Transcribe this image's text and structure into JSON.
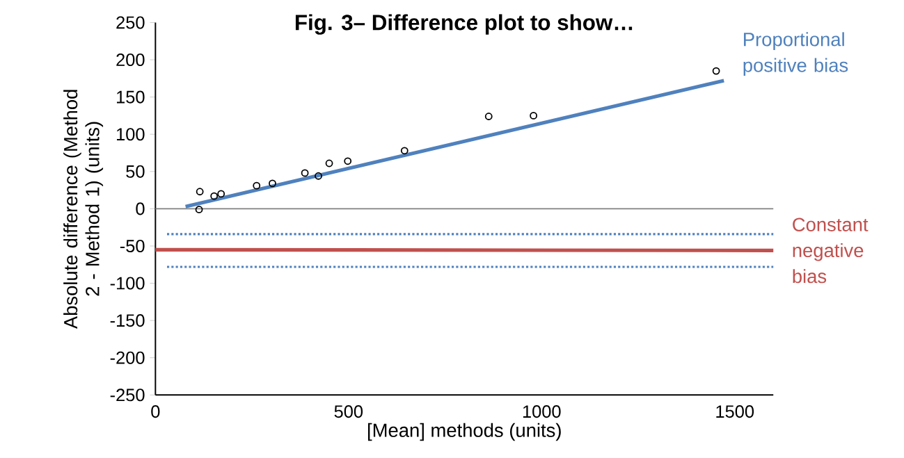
{
  "chart_data": {
    "type": "scatter",
    "title": "Fig. 3– Difference plot to show…",
    "xlabel": "[Mean] methods (units)",
    "ylabel": "Absolute difference (Method 2 - Method 1) (units)",
    "xlim": [
      0,
      1600
    ],
    "ylim": [
      -250,
      250
    ],
    "xticks": [
      0,
      500,
      1000,
      1500
    ],
    "yticks": [
      -250,
      -200,
      -150,
      -100,
      -50,
      0,
      50,
      100,
      150,
      200,
      250
    ],
    "ref_lines": [
      {
        "axis": "y",
        "value": 0,
        "color": "#808080"
      }
    ],
    "series": [
      {
        "type": "scatter",
        "marker": "circle",
        "color": "#000000",
        "x": [
          115,
          113,
          152,
          170,
          262,
          303,
          387,
          422,
          450,
          498,
          645,
          863,
          979,
          1452
        ],
        "values": [
          23,
          -1,
          17,
          20,
          31,
          34,
          48,
          44,
          61,
          64,
          78,
          124,
          125,
          185
        ]
      },
      {
        "type": "line",
        "name": "Proportional positive bias",
        "color": "#4f81bd",
        "line_style": "solid",
        "x": [
          78,
          1472
        ],
        "values": [
          3,
          172
        ]
      },
      {
        "type": "line",
        "name": "Constant negative bias",
        "color": "#c0504d",
        "line_style": "solid",
        "x": [
          0,
          1600
        ],
        "values": [
          -55,
          -56
        ]
      },
      {
        "type": "line",
        "color": "#4f81bd",
        "line_style": "dotted",
        "x": [
          30,
          1600
        ],
        "values": [
          -34,
          -34
        ]
      },
      {
        "type": "line",
        "color": "#4f81bd",
        "line_style": "dotted",
        "x": [
          30,
          1600
        ],
        "values": [
          -78,
          -78
        ]
      }
    ]
  }
}
